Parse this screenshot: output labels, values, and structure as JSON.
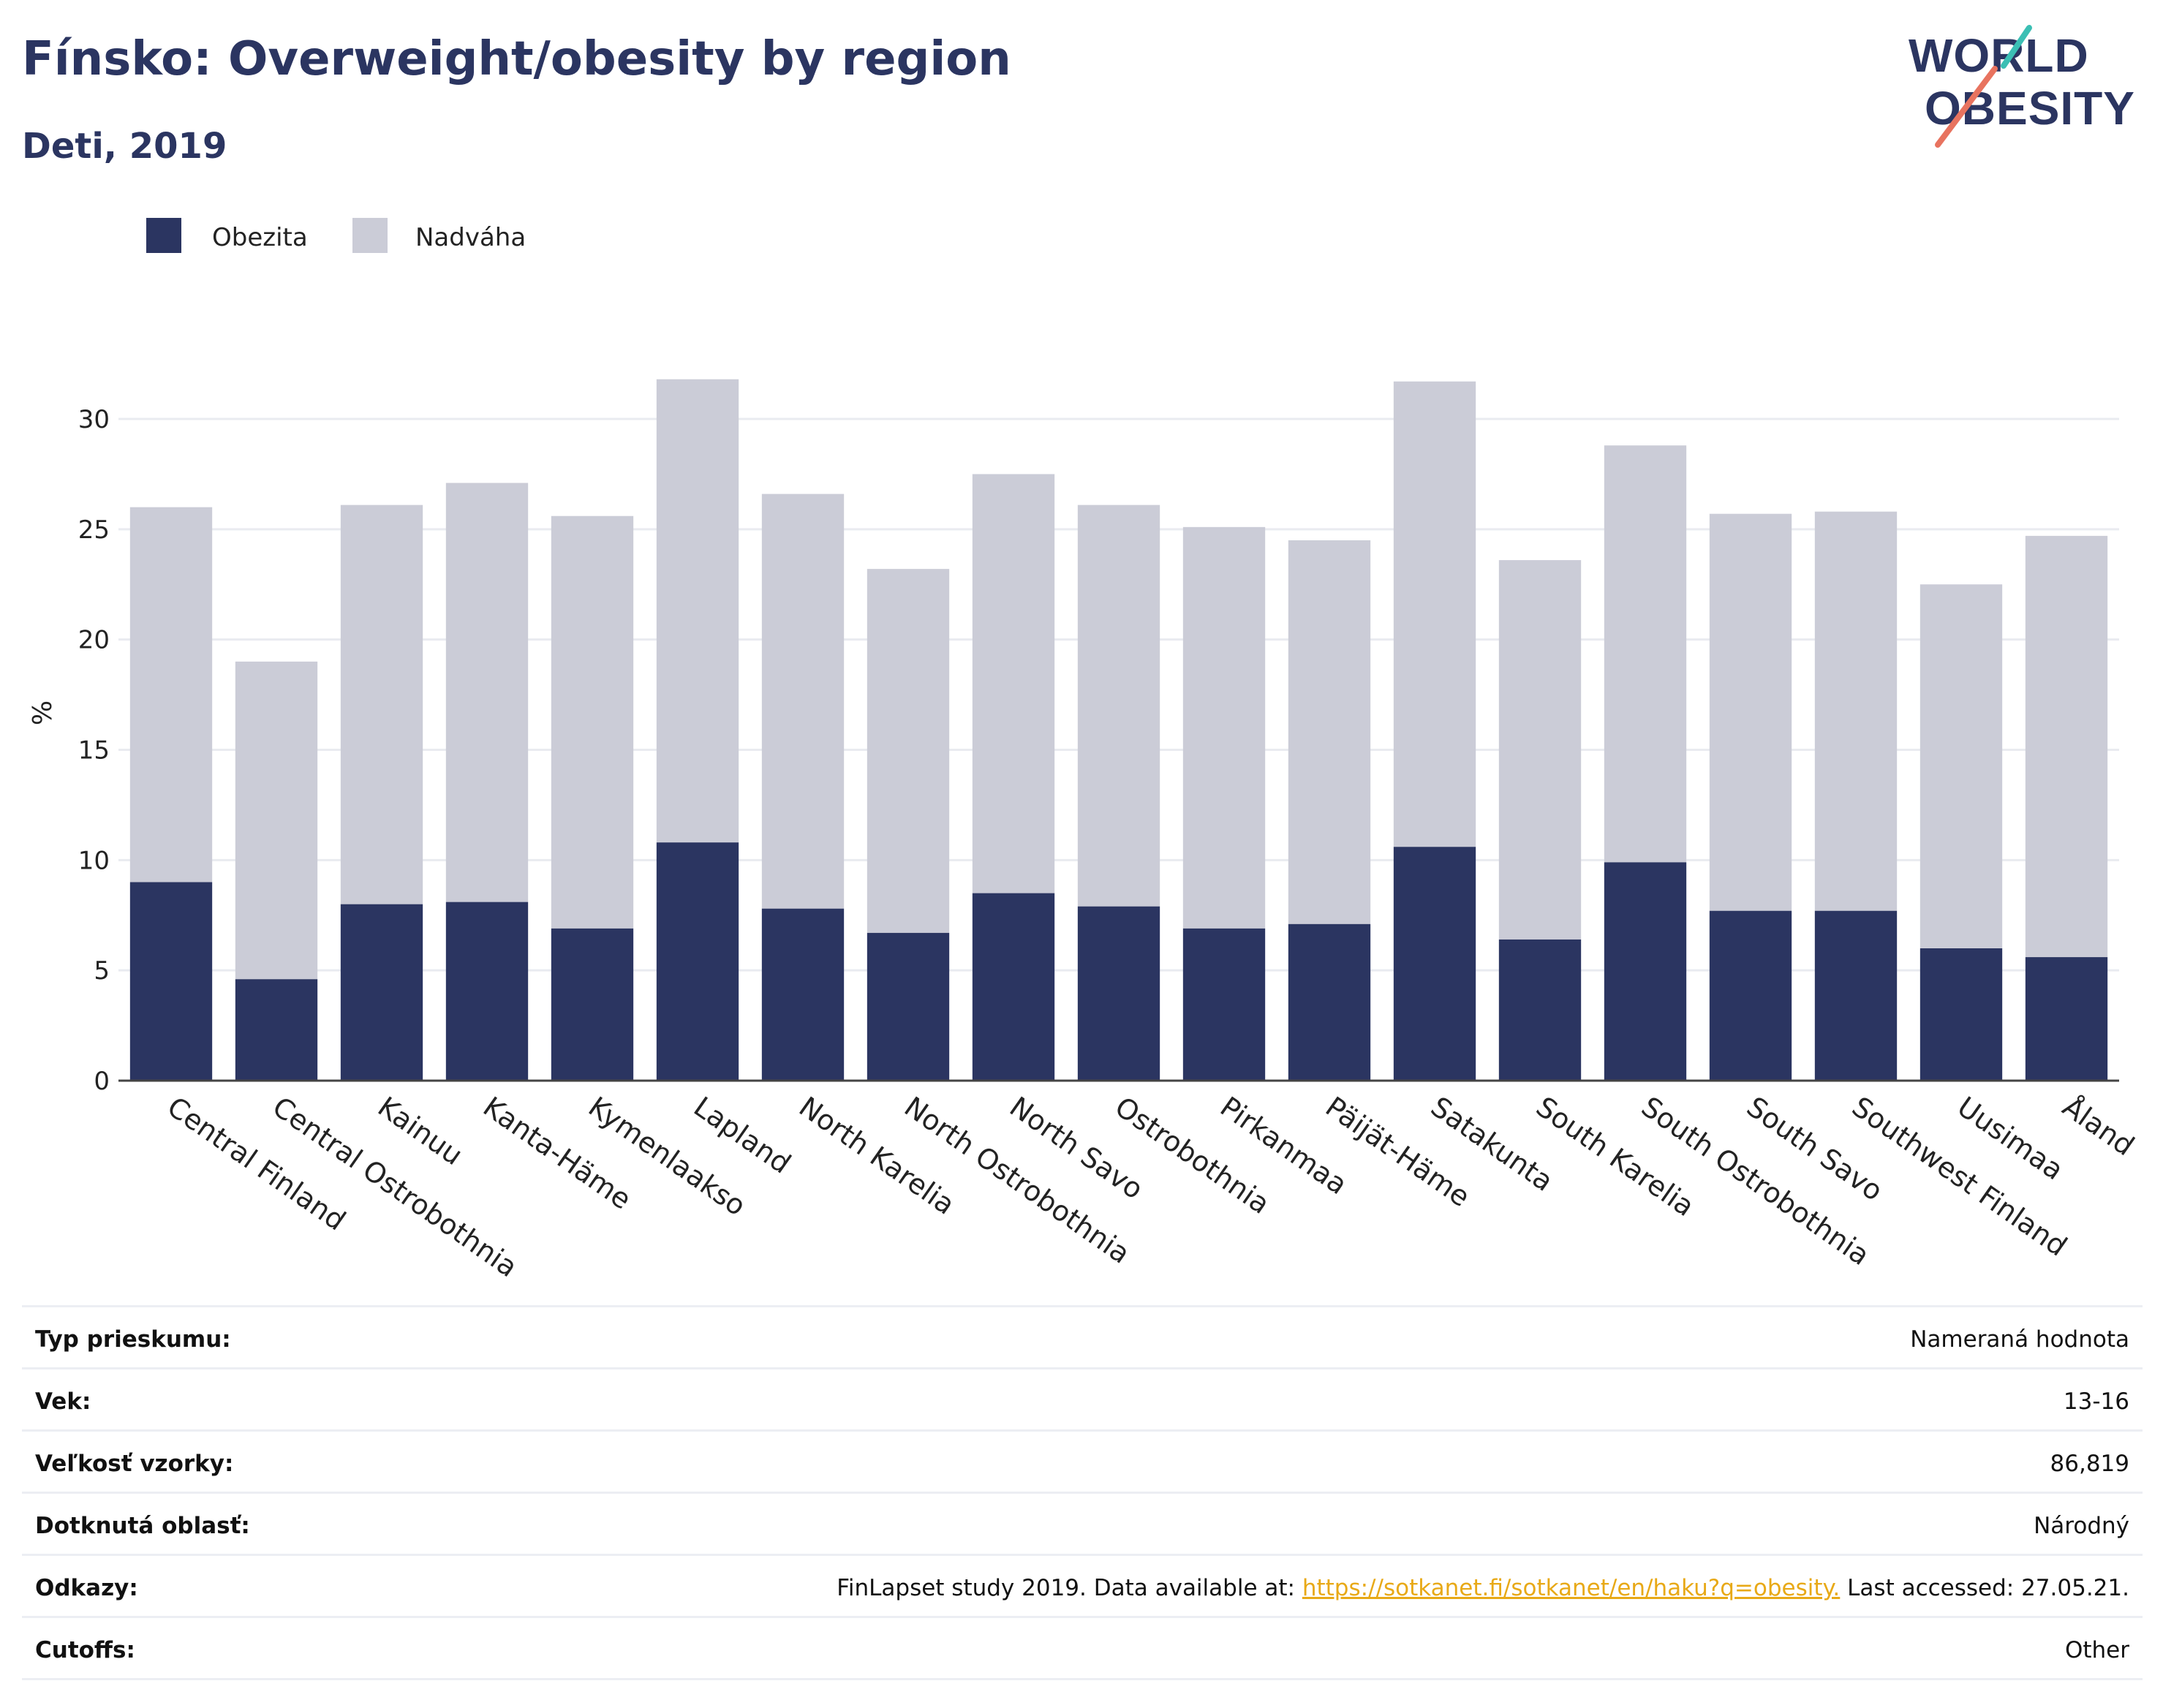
{
  "header": {
    "title": "Fínsko: Overweight/obesity by region",
    "subtitle": "Deti, 2019",
    "logo_top": "WORLD",
    "logo_bottom": "OBESITY"
  },
  "colors": {
    "obesity": "#2b3561",
    "overweight": "#cbccd7",
    "title": "#2b3561",
    "link": "#e8a917",
    "logo_teal": "#3bbfb4",
    "logo_coral": "#e8735f"
  },
  "chart_data": {
    "type": "bar",
    "stacked": true,
    "ylabel": "%",
    "xlabel": "",
    "ylim": [
      0,
      32.5
    ],
    "yticks": [
      0,
      5,
      10,
      15,
      20,
      25,
      30
    ],
    "grid": true,
    "legend_position": "top-left",
    "categories": [
      "Central Finland",
      "Central Ostrobothnia",
      "Kainuu",
      "Kanta-Häme",
      "Kymenlaakso",
      "Lapland",
      "North Karelia",
      "North Ostrobothnia",
      "North Savo",
      "Ostrobothnia",
      "Pirkanmaa",
      "Päijät-Häme",
      "Satakunta",
      "South Karelia",
      "South Ostrobothnia",
      "South Savo",
      "Southwest Finland",
      "Uusimaa",
      "Åland"
    ],
    "series": [
      {
        "name": "Obezita",
        "values": [
          9.0,
          4.6,
          8.0,
          8.1,
          6.9,
          10.8,
          7.8,
          6.7,
          8.5,
          7.9,
          6.9,
          7.1,
          10.6,
          6.4,
          9.9,
          7.7,
          7.7,
          6.0,
          5.6
        ]
      },
      {
        "name": "Nadváha",
        "values": [
          17.0,
          14.4,
          18.1,
          19.0,
          18.7,
          21.0,
          18.8,
          16.5,
          19.0,
          18.2,
          18.2,
          17.4,
          21.1,
          17.2,
          18.9,
          18.0,
          18.1,
          16.5,
          19.1
        ]
      }
    ]
  },
  "table": [
    {
      "key": "Typ prieskumu:",
      "value": "Nameraná hodnota"
    },
    {
      "key": "Vek:",
      "value": "13-16"
    },
    {
      "key": "Veľkosť vzorky:",
      "value": "86,819"
    },
    {
      "key": "Dotknutá oblasť:",
      "value": "Národný"
    },
    {
      "key": "Odkazy:",
      "value_prefix": "FinLapset study 2019. Data available at: ",
      "link": "https://sotkanet.fi/sotkanet/en/haku?q=obesity.",
      "value_suffix": " Last accessed: 27.05.21."
    },
    {
      "key": "Cutoffs:",
      "value": "Other"
    }
  ]
}
